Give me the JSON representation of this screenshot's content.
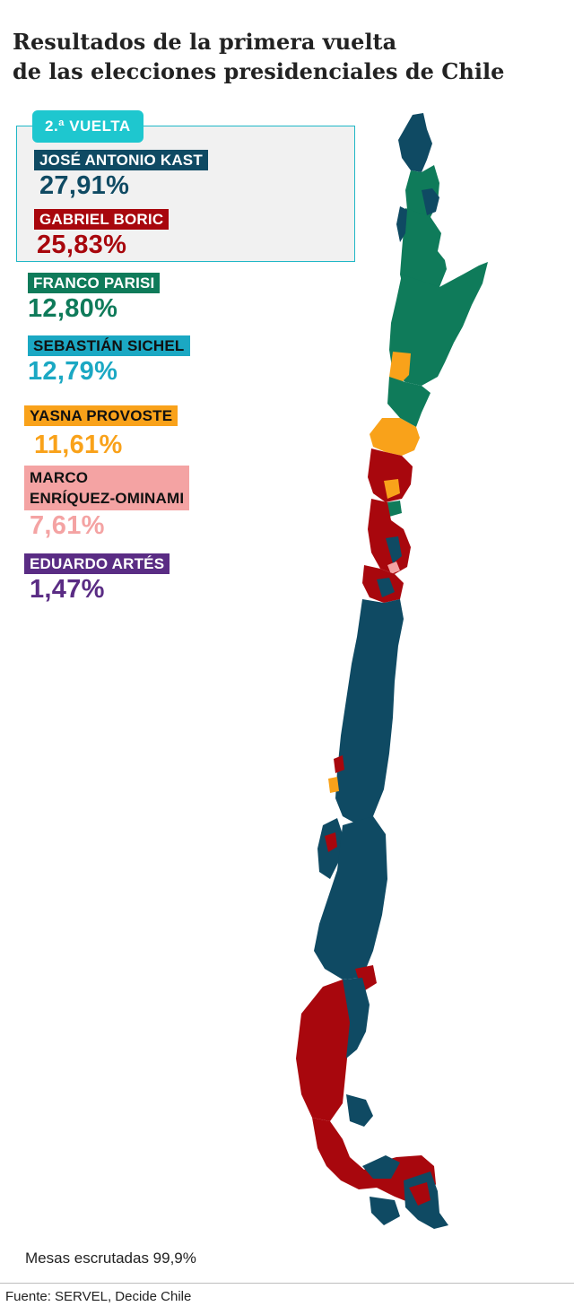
{
  "title": {
    "line1": "Resultados de la primera vuelta",
    "line2": "de las elecciones presidenciales de Chile"
  },
  "runoff_label": "2.ª VUELTA",
  "candidates": [
    {
      "name": "JOSÉ ANTONIO KAST",
      "percent": "27,91%",
      "color": "#0f4a63",
      "label_text_color": "#ffffff",
      "runoff": true
    },
    {
      "name": "GABRIEL BORIC",
      "percent": "25,83%",
      "color": "#a8070d",
      "label_text_color": "#ffffff",
      "runoff": true
    },
    {
      "name": "FRANCO PARISI",
      "percent": "12,80%",
      "color": "#0f7b5a",
      "label_text_color": "#ffffff",
      "runoff": false
    },
    {
      "name": "SEBASTIÁN SICHEL",
      "percent": "12,79%",
      "color": "#1ba8c3",
      "label_text_color": "#111111",
      "runoff": false
    },
    {
      "name": "YASNA PROVOSTE",
      "percent": "11,61%",
      "color": "#f9a21a",
      "label_text_color": "#111111",
      "runoff": false
    },
    {
      "name_line1": "MARCO",
      "name_line2": "ENRÍQUEZ-OMINAMI",
      "percent": "7,61%",
      "color": "#f4a3a3",
      "label_text_color": "#111111",
      "runoff": false
    },
    {
      "name": "EDUARDO ARTÉS",
      "percent": "1,47%",
      "color": "#5a2c84",
      "label_text_color": "#ffffff",
      "runoff": false
    }
  ],
  "map": {
    "country": "Chile",
    "winner_colors": {
      "kast": "#0f4a63",
      "boric": "#a8070d",
      "parisi": "#0f7b5a",
      "provoste": "#f9a21a",
      "enriquez_ominami": "#f4a3a3"
    }
  },
  "footer": {
    "mesas": "Mesas escrutadas 99,9%",
    "source": "Fuente: SERVEL, Decide Chile"
  },
  "colors": {
    "runoff_border": "#1fb7c6",
    "runoff_tag_bg": "#1ec7cf",
    "runoff_box_bg": "#f1f1f1"
  }
}
